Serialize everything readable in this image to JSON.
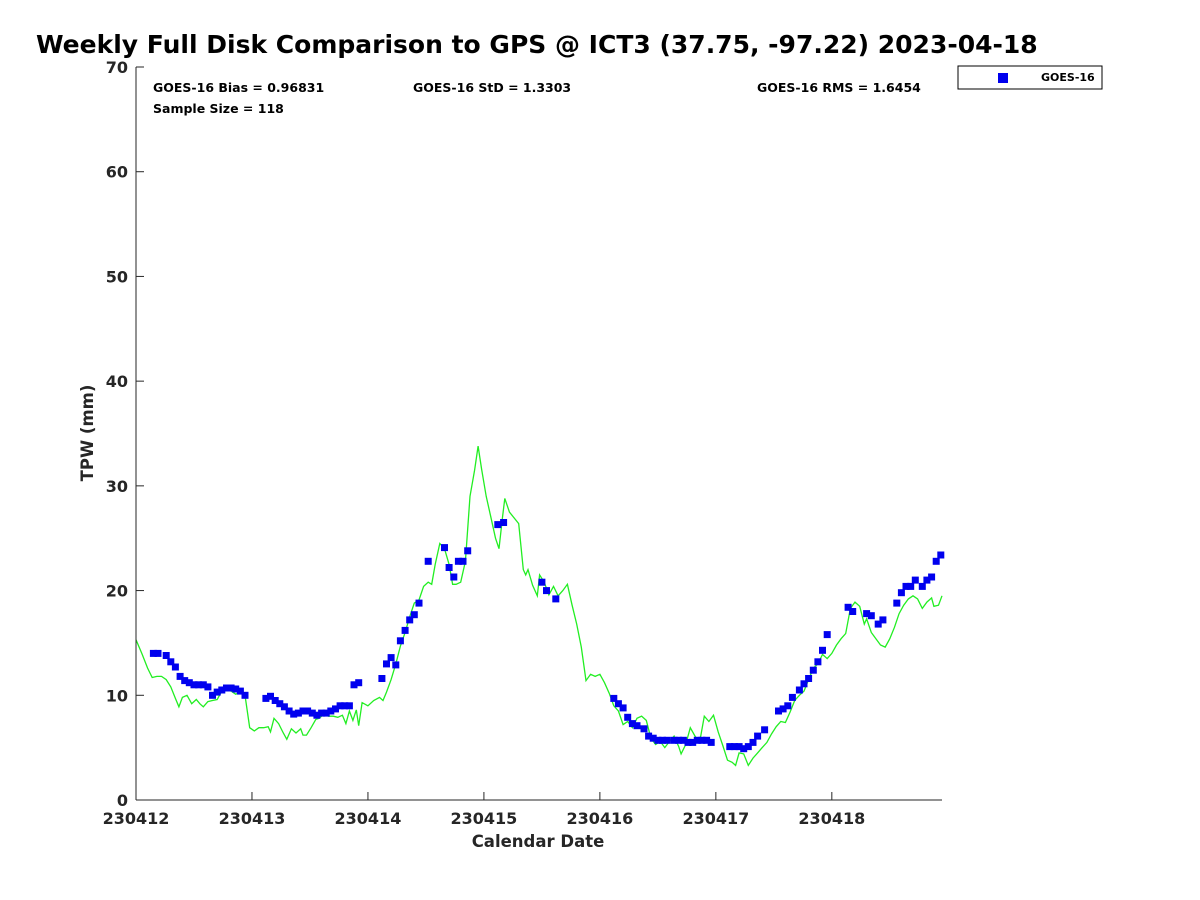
{
  "chart_data": {
    "type": "scatter",
    "title": "Weekly Full Disk Comparison to GPS @ ICT3 (37.75, -97.22) 2023-04-18",
    "xlabel": "Calendar Date",
    "ylabel": "TPW (mm)",
    "xlim": [
      0,
      6.95
    ],
    "ylim": [
      0,
      70
    ],
    "x_tick_values": [
      0,
      1,
      2,
      3,
      4,
      5,
      6
    ],
    "x_tick_labels": [
      "230412",
      "230413",
      "230414",
      "230415",
      "230416",
      "230417",
      "230418"
    ],
    "y_tick_values": [
      0,
      10,
      20,
      30,
      40,
      50,
      60,
      70
    ],
    "y_tick_labels": [
      "0",
      "10",
      "20",
      "30",
      "40",
      "50",
      "60",
      "70"
    ],
    "grid": false,
    "legend_position": "top-right outside",
    "stats": {
      "bias": "GOES-16 Bias = 0.96831",
      "std": "GOES-16 StD = 1.3303",
      "rms": "GOES-16 RMS = 1.6454",
      "sample": "Sample Size = 118"
    },
    "colors": {
      "goes": "#0000ee",
      "gps": "#22ee22"
    },
    "series": [
      {
        "name": "GOES-16",
        "marker": "square",
        "points": [
          [
            0.15,
            14.0
          ],
          [
            0.19,
            14.0
          ],
          [
            0.26,
            13.8
          ],
          [
            0.3,
            13.2
          ],
          [
            0.34,
            12.7
          ],
          [
            0.38,
            11.8
          ],
          [
            0.42,
            11.4
          ],
          [
            0.46,
            11.2
          ],
          [
            0.5,
            11.0
          ],
          [
            0.54,
            11.0
          ],
          [
            0.58,
            11.0
          ],
          [
            0.62,
            10.8
          ],
          [
            0.66,
            10.0
          ],
          [
            0.7,
            10.3
          ],
          [
            0.74,
            10.5
          ],
          [
            0.78,
            10.7
          ],
          [
            0.82,
            10.7
          ],
          [
            0.86,
            10.6
          ],
          [
            0.9,
            10.4
          ],
          [
            0.94,
            10.0
          ],
          [
            1.12,
            9.7
          ],
          [
            1.16,
            9.9
          ],
          [
            1.2,
            9.5
          ],
          [
            1.24,
            9.2
          ],
          [
            1.28,
            8.9
          ],
          [
            1.32,
            8.5
          ],
          [
            1.36,
            8.2
          ],
          [
            1.4,
            8.3
          ],
          [
            1.44,
            8.5
          ],
          [
            1.48,
            8.5
          ],
          [
            1.52,
            8.3
          ],
          [
            1.56,
            8.1
          ],
          [
            1.6,
            8.3
          ],
          [
            1.64,
            8.3
          ],
          [
            1.68,
            8.5
          ],
          [
            1.72,
            8.7
          ],
          [
            1.76,
            9.0
          ],
          [
            1.8,
            9.0
          ],
          [
            1.84,
            9.0
          ],
          [
            1.88,
            11.0
          ],
          [
            1.92,
            11.2
          ],
          [
            2.12,
            11.6
          ],
          [
            2.16,
            13.0
          ],
          [
            2.2,
            13.6
          ],
          [
            2.24,
            12.9
          ],
          [
            2.28,
            15.2
          ],
          [
            2.32,
            16.2
          ],
          [
            2.36,
            17.2
          ],
          [
            2.4,
            17.7
          ],
          [
            2.44,
            18.8
          ],
          [
            2.52,
            22.8
          ],
          [
            2.66,
            24.1
          ],
          [
            2.7,
            22.2
          ],
          [
            2.74,
            21.3
          ],
          [
            2.78,
            22.8
          ],
          [
            2.82,
            22.8
          ],
          [
            2.86,
            23.8
          ],
          [
            3.12,
            26.3
          ],
          [
            3.17,
            26.5
          ],
          [
            3.5,
            20.8
          ],
          [
            3.54,
            20.0
          ],
          [
            3.62,
            19.2
          ],
          [
            4.12,
            9.7
          ],
          [
            4.16,
            9.2
          ],
          [
            4.2,
            8.8
          ],
          [
            4.24,
            7.9
          ],
          [
            4.28,
            7.3
          ],
          [
            4.32,
            7.1
          ],
          [
            4.38,
            6.8
          ],
          [
            4.42,
            6.1
          ],
          [
            4.46,
            5.9
          ],
          [
            4.5,
            5.7
          ],
          [
            4.54,
            5.7
          ],
          [
            4.58,
            5.7
          ],
          [
            4.64,
            5.7
          ],
          [
            4.68,
            5.7
          ],
          [
            4.72,
            5.7
          ],
          [
            4.76,
            5.5
          ],
          [
            4.8,
            5.5
          ],
          [
            4.84,
            5.7
          ],
          [
            4.88,
            5.7
          ],
          [
            4.92,
            5.7
          ],
          [
            4.96,
            5.5
          ],
          [
            5.12,
            5.1
          ],
          [
            5.16,
            5.1
          ],
          [
            5.2,
            5.1
          ],
          [
            5.24,
            4.9
          ],
          [
            5.28,
            5.1
          ],
          [
            5.32,
            5.5
          ],
          [
            5.36,
            6.1
          ],
          [
            5.42,
            6.7
          ],
          [
            5.54,
            8.5
          ],
          [
            5.58,
            8.7
          ],
          [
            5.62,
            9.0
          ],
          [
            5.66,
            9.8
          ],
          [
            5.72,
            10.5
          ],
          [
            5.76,
            11.1
          ],
          [
            5.8,
            11.6
          ],
          [
            5.84,
            12.4
          ],
          [
            5.88,
            13.2
          ],
          [
            5.92,
            14.3
          ],
          [
            5.96,
            15.8
          ],
          [
            6.14,
            18.4
          ],
          [
            6.18,
            18.0
          ],
          [
            6.3,
            17.8
          ],
          [
            6.34,
            17.6
          ],
          [
            6.4,
            16.8
          ],
          [
            6.44,
            17.2
          ],
          [
            6.56,
            18.8
          ],
          [
            6.6,
            19.8
          ],
          [
            6.64,
            20.4
          ],
          [
            6.68,
            20.4
          ],
          [
            6.72,
            21.0
          ],
          [
            6.78,
            20.4
          ],
          [
            6.82,
            21.0
          ],
          [
            6.86,
            21.3
          ],
          [
            6.9,
            22.8
          ],
          [
            6.94,
            23.4
          ]
        ]
      },
      {
        "name": "GPS",
        "line": true,
        "points": [
          [
            0.0,
            15.3
          ],
          [
            0.05,
            14.0
          ],
          [
            0.1,
            12.6
          ],
          [
            0.14,
            11.7
          ],
          [
            0.18,
            11.8
          ],
          [
            0.22,
            11.8
          ],
          [
            0.26,
            11.5
          ],
          [
            0.3,
            10.8
          ],
          [
            0.34,
            9.7
          ],
          [
            0.37,
            8.9
          ],
          [
            0.4,
            9.8
          ],
          [
            0.44,
            10.0
          ],
          [
            0.48,
            9.2
          ],
          [
            0.52,
            9.6
          ],
          [
            0.55,
            9.2
          ],
          [
            0.58,
            8.9
          ],
          [
            0.62,
            9.4
          ],
          [
            0.66,
            9.5
          ],
          [
            0.7,
            9.6
          ],
          [
            0.74,
            10.4
          ],
          [
            0.78,
            10.5
          ],
          [
            0.82,
            10.4
          ],
          [
            0.86,
            10.1
          ],
          [
            0.9,
            10.3
          ],
          [
            0.94,
            10.0
          ],
          [
            0.98,
            6.9
          ],
          [
            1.02,
            6.6
          ],
          [
            1.06,
            6.9
          ],
          [
            1.1,
            6.9
          ],
          [
            1.14,
            7.0
          ],
          [
            1.16,
            6.5
          ],
          [
            1.19,
            7.8
          ],
          [
            1.23,
            7.3
          ],
          [
            1.27,
            6.4
          ],
          [
            1.3,
            5.8
          ],
          [
            1.34,
            6.8
          ],
          [
            1.38,
            6.4
          ],
          [
            1.42,
            6.8
          ],
          [
            1.44,
            6.2
          ],
          [
            1.47,
            6.2
          ],
          [
            1.51,
            6.9
          ],
          [
            1.55,
            7.7
          ],
          [
            1.58,
            7.8
          ],
          [
            1.62,
            8.2
          ],
          [
            1.66,
            8.0
          ],
          [
            1.7,
            8.0
          ],
          [
            1.74,
            7.9
          ],
          [
            1.78,
            8.1
          ],
          [
            1.81,
            7.3
          ],
          [
            1.84,
            8.5
          ],
          [
            1.87,
            7.6
          ],
          [
            1.9,
            8.6
          ],
          [
            1.92,
            7.1
          ],
          [
            1.95,
            9.3
          ],
          [
            2.0,
            9.0
          ],
          [
            2.05,
            9.5
          ],
          [
            2.1,
            9.8
          ],
          [
            2.13,
            9.5
          ],
          [
            2.16,
            10.3
          ],
          [
            2.2,
            11.5
          ],
          [
            2.24,
            13.0
          ],
          [
            2.28,
            14.7
          ],
          [
            2.32,
            16.0
          ],
          [
            2.36,
            17.5
          ],
          [
            2.4,
            18.8
          ],
          [
            2.44,
            19.1
          ],
          [
            2.48,
            20.4
          ],
          [
            2.52,
            20.8
          ],
          [
            2.55,
            20.6
          ],
          [
            2.58,
            22.5
          ],
          [
            2.62,
            24.5
          ],
          [
            2.66,
            24.0
          ],
          [
            2.7,
            22.5
          ],
          [
            2.73,
            20.6
          ],
          [
            2.76,
            20.6
          ],
          [
            2.8,
            20.8
          ],
          [
            2.84,
            22.8
          ],
          [
            2.88,
            29.0
          ],
          [
            2.92,
            31.5
          ],
          [
            2.95,
            33.8
          ],
          [
            2.98,
            31.6
          ],
          [
            3.02,
            29.0
          ],
          [
            3.06,
            27.0
          ],
          [
            3.1,
            25.0
          ],
          [
            3.13,
            24.0
          ],
          [
            3.16,
            27.0
          ],
          [
            3.18,
            28.8
          ],
          [
            3.22,
            27.5
          ],
          [
            3.3,
            26.4
          ],
          [
            3.34,
            22.0
          ],
          [
            3.36,
            21.5
          ],
          [
            3.38,
            22.0
          ],
          [
            3.42,
            20.5
          ],
          [
            3.46,
            19.5
          ],
          [
            3.48,
            21.5
          ],
          [
            3.52,
            20.8
          ],
          [
            3.56,
            19.6
          ],
          [
            3.6,
            20.4
          ],
          [
            3.64,
            19.5
          ],
          [
            3.68,
            20.0
          ],
          [
            3.72,
            20.6
          ],
          [
            3.76,
            18.6
          ],
          [
            3.8,
            16.8
          ],
          [
            3.84,
            14.6
          ],
          [
            3.88,
            11.4
          ],
          [
            3.92,
            12.0
          ],
          [
            3.96,
            11.8
          ],
          [
            4.0,
            12.0
          ],
          [
            4.04,
            11.2
          ],
          [
            4.08,
            10.2
          ],
          [
            4.12,
            9.0
          ],
          [
            4.16,
            8.5
          ],
          [
            4.2,
            7.2
          ],
          [
            4.24,
            7.5
          ],
          [
            4.28,
            6.9
          ],
          [
            4.32,
            7.8
          ],
          [
            4.36,
            8.0
          ],
          [
            4.4,
            7.6
          ],
          [
            4.44,
            5.9
          ],
          [
            4.48,
            5.3
          ],
          [
            4.52,
            5.6
          ],
          [
            4.56,
            5.0
          ],
          [
            4.6,
            5.6
          ],
          [
            4.64,
            6.1
          ],
          [
            4.68,
            5.1
          ],
          [
            4.7,
            4.4
          ],
          [
            4.74,
            5.3
          ],
          [
            4.78,
            6.9
          ],
          [
            4.82,
            6.1
          ],
          [
            4.86,
            5.5
          ],
          [
            4.9,
            8.0
          ],
          [
            4.94,
            7.5
          ],
          [
            4.98,
            8.1
          ],
          [
            5.02,
            6.5
          ],
          [
            5.06,
            5.2
          ],
          [
            5.1,
            3.8
          ],
          [
            5.14,
            3.6
          ],
          [
            5.17,
            3.3
          ],
          [
            5.2,
            4.5
          ],
          [
            5.24,
            4.4
          ],
          [
            5.28,
            3.3
          ],
          [
            5.32,
            4.0
          ],
          [
            5.36,
            4.5
          ],
          [
            5.4,
            5.0
          ],
          [
            5.44,
            5.5
          ],
          [
            5.48,
            6.3
          ],
          [
            5.52,
            7.0
          ],
          [
            5.56,
            7.5
          ],
          [
            5.6,
            7.4
          ],
          [
            5.64,
            8.4
          ],
          [
            5.68,
            9.5
          ],
          [
            5.72,
            10.0
          ],
          [
            5.76,
            10.4
          ],
          [
            5.8,
            11.5
          ],
          [
            5.84,
            12.6
          ],
          [
            5.88,
            13.0
          ],
          [
            5.92,
            13.9
          ],
          [
            5.96,
            13.5
          ],
          [
            6.0,
            14.0
          ],
          [
            6.04,
            14.8
          ],
          [
            6.08,
            15.4
          ],
          [
            6.12,
            15.9
          ],
          [
            6.16,
            18.3
          ],
          [
            6.2,
            18.9
          ],
          [
            6.24,
            18.5
          ],
          [
            6.28,
            16.8
          ],
          [
            6.3,
            17.3
          ],
          [
            6.34,
            16.0
          ],
          [
            6.38,
            15.4
          ],
          [
            6.42,
            14.8
          ],
          [
            6.46,
            14.6
          ],
          [
            6.5,
            15.4
          ],
          [
            6.54,
            16.5
          ],
          [
            6.58,
            17.8
          ],
          [
            6.62,
            18.6
          ],
          [
            6.66,
            19.2
          ],
          [
            6.7,
            19.5
          ],
          [
            6.74,
            19.2
          ],
          [
            6.78,
            18.3
          ],
          [
            6.82,
            18.9
          ],
          [
            6.86,
            19.3
          ],
          [
            6.88,
            18.5
          ],
          [
            6.92,
            18.6
          ],
          [
            6.95,
            19.5
          ]
        ]
      }
    ]
  }
}
